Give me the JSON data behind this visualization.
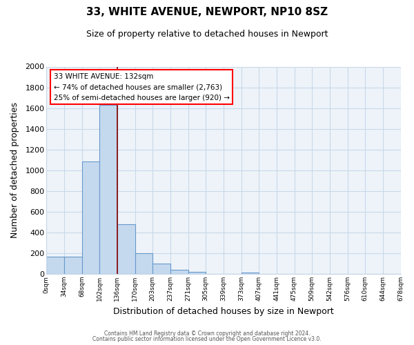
{
  "title": "33, WHITE AVENUE, NEWPORT, NP10 8SZ",
  "subtitle": "Size of property relative to detached houses in Newport",
  "xlabel": "Distribution of detached houses by size in Newport",
  "ylabel": "Number of detached properties",
  "bin_labels": [
    "0sqm",
    "34sqm",
    "68sqm",
    "102sqm",
    "136sqm",
    "170sqm",
    "203sqm",
    "237sqm",
    "271sqm",
    "305sqm",
    "339sqm",
    "373sqm",
    "407sqm",
    "441sqm",
    "475sqm",
    "509sqm",
    "542sqm",
    "576sqm",
    "610sqm",
    "644sqm",
    "678sqm"
  ],
  "bar_heights": [
    165,
    165,
    1085,
    1630,
    480,
    200,
    100,
    40,
    20,
    0,
    0,
    15,
    0,
    0,
    0,
    0,
    0,
    0,
    0,
    0
  ],
  "bar_fill_color": "#c5d9ee",
  "bar_edge_color": "#6699cc",
  "red_line_index": 4,
  "ylim": [
    0,
    2000
  ],
  "yticks": [
    0,
    200,
    400,
    600,
    800,
    1000,
    1200,
    1400,
    1600,
    1800,
    2000
  ],
  "annotation_title": "33 WHITE AVENUE: 132sqm",
  "annotation_line1": "← 74% of detached houses are smaller (2,763)",
  "annotation_line2": "25% of semi-detached houses are larger (920) →",
  "footer_line1": "Contains HM Land Registry data © Crown copyright and database right 2024.",
  "footer_line2": "Contains public sector information licensed under the Open Government Licence v3.0.",
  "background_color": "#ffffff",
  "plot_bg_color": "#eef3f9",
  "grid_color": "#c8d8e8",
  "title_fontsize": 11,
  "subtitle_fontsize": 9
}
